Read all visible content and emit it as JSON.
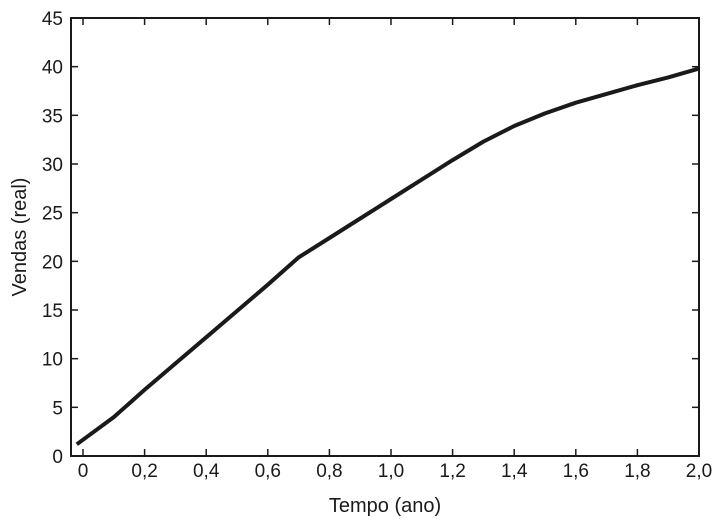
{
  "chart_data": {
    "type": "line",
    "title": "",
    "xlabel": "Tempo (ano)",
    "ylabel": "Vendas (real)",
    "xlim": [
      0,
      2.0
    ],
    "ylim": [
      0,
      45
    ],
    "x_ticks": [
      "0",
      "0,2",
      "0,4",
      "0,6",
      "0,8",
      "1,0",
      "1,2",
      "1,4",
      "1,6",
      "1,8",
      "2,0"
    ],
    "x_tick_values": [
      0,
      0.2,
      0.4,
      0.6,
      0.8,
      1.0,
      1.2,
      1.4,
      1.6,
      1.8,
      2.0
    ],
    "y_ticks": [
      "0",
      "5",
      "10",
      "15",
      "20",
      "25",
      "30",
      "35",
      "40",
      "45"
    ],
    "y_tick_values": [
      0,
      5,
      10,
      15,
      20,
      25,
      30,
      35,
      40,
      45
    ],
    "grid": false,
    "legend": "none",
    "series": [
      {
        "color": "#1a1a1a",
        "x": [
          -0.02,
          0.1,
          0.2,
          0.3,
          0.4,
          0.5,
          0.6,
          0.7,
          0.8,
          0.9,
          1.0,
          1.1,
          1.2,
          1.3,
          1.4,
          1.5,
          1.6,
          1.7,
          1.8,
          1.9,
          2.0
        ],
        "y": [
          1.2,
          4.0,
          6.8,
          9.5,
          12.2,
          14.9,
          17.6,
          20.4,
          22.4,
          24.4,
          26.4,
          28.4,
          30.4,
          32.3,
          33.9,
          35.2,
          36.3,
          37.2,
          38.1,
          38.9,
          39.8
        ]
      }
    ]
  }
}
